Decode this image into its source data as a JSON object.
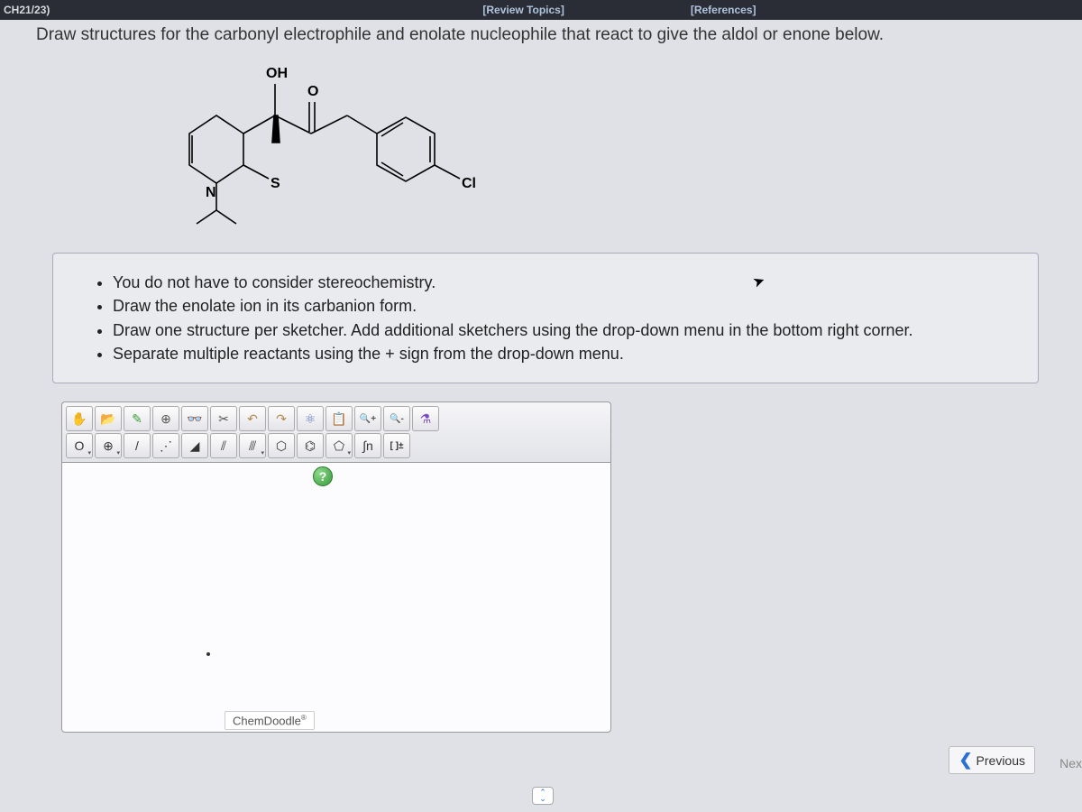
{
  "topbar": {
    "chapter": "CH21/23)",
    "review_topics": "[Review Topics]",
    "references": "[References]"
  },
  "prompt": "Draw structures for the carbonyl electrophile and enolate nucleophile that react to give the aldol or enone below.",
  "molecule": {
    "labels": {
      "oh": "OH",
      "o": "O",
      "n": "N",
      "s": "S",
      "cl": "Cl"
    }
  },
  "instructions": {
    "items": [
      "You do not have to consider stereochemistry.",
      "Draw the enolate ion in its carbanion form.",
      "Draw one structure per sketcher. Add additional sketchers using the drop-down menu in the bottom right corner.",
      "Separate multiple reactants using the + sign from the drop-down menu."
    ]
  },
  "sketcher": {
    "toolbar_row1": [
      {
        "name": "hand-icon",
        "glyph": "✋",
        "color": "#c97a2a"
      },
      {
        "name": "open-icon",
        "glyph": "📂",
        "color": "#c97a2a"
      },
      {
        "name": "pencil-icon",
        "glyph": "✎",
        "color": "#3a9a3a"
      },
      {
        "name": "target-icon",
        "glyph": "⊕",
        "color": "#555"
      },
      {
        "name": "glasses-icon",
        "glyph": "👓",
        "color": "#555"
      },
      {
        "name": "scissors-icon",
        "glyph": "✂",
        "color": "#555"
      },
      {
        "name": "undo-icon",
        "glyph": "↶",
        "color": "#b08a4a"
      },
      {
        "name": "redo-icon",
        "glyph": "↷",
        "color": "#b08a4a"
      },
      {
        "name": "molecule-icon",
        "glyph": "⚛",
        "color": "#5a7ac0"
      },
      {
        "name": "paste-icon",
        "glyph": "📋",
        "color": "#b08a4a"
      },
      {
        "name": "zoom-in-icon",
        "glyph": "🔍+",
        "color": "#555"
      },
      {
        "name": "zoom-out-icon",
        "glyph": "🔍-",
        "color": "#555"
      },
      {
        "name": "chemistry-icon",
        "glyph": "⚗",
        "color": "#7a4ac0"
      }
    ],
    "toolbar_row2": [
      {
        "name": "oxygen-atom-btn",
        "glyph": "O",
        "dd": true
      },
      {
        "name": "add-atom-btn",
        "glyph": "⊕",
        "dd": true
      },
      {
        "name": "single-bond-btn",
        "glyph": "/",
        "dd": false
      },
      {
        "name": "dashed-bond-btn",
        "glyph": "⋰",
        "dd": false
      },
      {
        "name": "wedge-bond-btn",
        "glyph": "◢",
        "dd": false
      },
      {
        "name": "double-bond-btn",
        "glyph": "⫽",
        "dd": false
      },
      {
        "name": "triple-bond-btn",
        "glyph": "⫻",
        "dd": true
      },
      {
        "name": "cyclohexane-btn",
        "glyph": "⬡",
        "dd": false
      },
      {
        "name": "benzene-btn",
        "glyph": "⌬",
        "dd": false
      },
      {
        "name": "cyclopentane-btn",
        "glyph": "⬠",
        "dd": true
      },
      {
        "name": "integral-btn",
        "glyph": "∫n",
        "dd": false
      },
      {
        "name": "bracket-btn",
        "glyph": "[ ]±",
        "dd": false
      }
    ],
    "help_label": "?",
    "brand": "ChemDoodle",
    "brand_reg": "®"
  },
  "nav": {
    "previous": "Previous",
    "next": "Nex"
  },
  "colors": {
    "accent_blue": "#2a6fd6",
    "bg": "#e0e1e6"
  }
}
